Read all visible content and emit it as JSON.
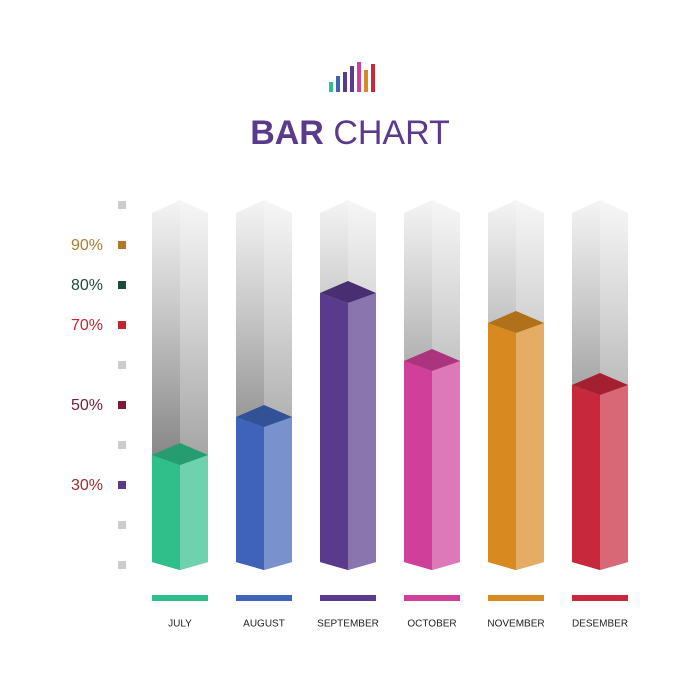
{
  "chart_data": {
    "type": "bar3d",
    "title_parts": [
      "BAR",
      "CHART"
    ],
    "title_color": "#5b3a8c",
    "categories": [
      "JULY",
      "AUGUST",
      "SEPTEMBER",
      "OCTOBER",
      "NOVEMBER",
      "DESEMBER"
    ],
    "values": [
      37.5,
      47,
      78,
      61,
      70.5,
      55
    ],
    "colors": [
      "#2fbf8a",
      "#3f63b8",
      "#5a3a8c",
      "#d0409a",
      "#d88a20",
      "#c8283c"
    ],
    "ylim": [
      10,
      100
    ],
    "yticks": [
      {
        "value": 10,
        "label": null
      },
      {
        "value": 20,
        "label": null
      },
      {
        "value": 30,
        "label": "30%"
      },
      {
        "value": 40,
        "label": null
      },
      {
        "value": 50,
        "label": "50%"
      },
      {
        "value": 60,
        "label": null
      },
      {
        "value": 70,
        "label": "70%"
      },
      {
        "value": 80,
        "label": "80%"
      },
      {
        "value": 90,
        "label": "90%"
      },
      {
        "value": 100,
        "label": null
      }
    ],
    "ytick_colors": [
      "#cccccc",
      "#cccccc",
      "#5b3a8c",
      "#cccccc",
      "#7a1a35",
      "#cccccc",
      "#c0272d",
      "#1f4a3a",
      "#b07a2a",
      "#cccccc"
    ],
    "ytick_label_colors": [
      null,
      null,
      "#a32a2a",
      null,
      "#7a1a35",
      null,
      "#c0272d",
      "#1f4a3a",
      "#b07a2a",
      null
    ]
  }
}
